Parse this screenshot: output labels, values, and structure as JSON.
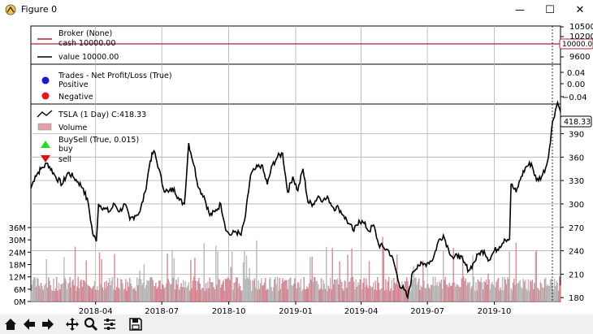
{
  "window": {
    "title": "Figure 0",
    "minimize_glyph": "—",
    "maximize_glyph": "☐",
    "close_glyph": "✕"
  },
  "toolbar": {
    "buttons": [
      "home-icon",
      "back-icon",
      "forward-icon",
      "pan-icon",
      "zoom-icon",
      "subplots-icon",
      "save-icon"
    ]
  },
  "colors": {
    "broker_line": "#b22234",
    "price_line": "#000000",
    "positive": "#1a1acc",
    "negative": "#e31a1c",
    "buy_marker": "#22dd22",
    "sell_marker": "#dd1111",
    "volume_up": "#c8c8c8",
    "volume_down": "#e3a1ab"
  },
  "chart_data": {
    "type": "line",
    "x_tick_labels": [
      "2018-04",
      "2018-07",
      "2018-10",
      "2019-01",
      "2019-04",
      "2019-07",
      "2019-10"
    ],
    "panels": {
      "broker": {
        "legend": [
          "Broker (None)",
          "cash 10000.00",
          "value 10000.00"
        ],
        "y_ticks": [
          10500,
          10200,
          10000,
          9600
        ],
        "value": 10000,
        "value_label": "10000.00"
      },
      "trades": {
        "legend": [
          "Trades - Net Profit/Loss (True)",
          "Positive",
          "Negative"
        ],
        "y_ticks": [
          "0.04",
          "0.00",
          "−0.04"
        ]
      },
      "price": {
        "legend": [
          "TSLA (1 Day) C:418.33",
          "Volume",
          "BuySell (True, 0.015)",
          "buy",
          "sell"
        ],
        "y_ticks": [
          180,
          210,
          240,
          270,
          300,
          330,
          360,
          390
        ],
        "ylim": [
          175,
          428
        ],
        "last_label": "418.33",
        "volume_ticks": [
          "0M",
          "6M",
          "12M",
          "18M",
          "24M",
          "30M",
          "36M"
        ],
        "volume_max_million": 36,
        "close_anchors": [
          [
            "2018-01-02",
            320
          ],
          [
            "2018-01-08",
            336
          ],
          [
            "2018-01-16",
            345
          ],
          [
            "2018-01-25",
            352
          ],
          [
            "2018-02-05",
            335
          ],
          [
            "2018-02-14",
            325
          ],
          [
            "2018-02-22",
            340
          ],
          [
            "2018-03-01",
            335
          ],
          [
            "2018-03-08",
            328
          ],
          [
            "2018-03-15",
            320
          ],
          [
            "2018-03-22",
            300
          ],
          [
            "2018-03-28",
            262
          ],
          [
            "2018-04-02",
            252
          ],
          [
            "2018-04-05",
            300
          ],
          [
            "2018-04-12",
            295
          ],
          [
            "2018-04-20",
            290
          ],
          [
            "2018-04-27",
            300
          ],
          [
            "2018-05-04",
            290
          ],
          [
            "2018-05-11",
            300
          ],
          [
            "2018-05-18",
            280
          ],
          [
            "2018-05-25",
            285
          ],
          [
            "2018-06-01",
            290
          ],
          [
            "2018-06-08",
            315
          ],
          [
            "2018-06-15",
            355
          ],
          [
            "2018-06-20",
            368
          ],
          [
            "2018-06-27",
            345
          ],
          [
            "2018-07-03",
            320
          ],
          [
            "2018-07-10",
            315
          ],
          [
            "2018-07-18",
            320
          ],
          [
            "2018-07-25",
            305
          ],
          [
            "2018-08-01",
            300
          ],
          [
            "2018-08-07",
            378
          ],
          [
            "2018-08-14",
            350
          ],
          [
            "2018-08-21",
            320
          ],
          [
            "2018-08-28",
            310
          ],
          [
            "2018-09-05",
            285
          ],
          [
            "2018-09-12",
            290
          ],
          [
            "2018-09-20",
            300
          ],
          [
            "2018-09-28",
            265
          ],
          [
            "2018-10-04",
            260
          ],
          [
            "2018-10-10",
            265
          ],
          [
            "2018-10-18",
            260
          ],
          [
            "2018-10-24",
            285
          ],
          [
            "2018-10-31",
            337
          ],
          [
            "2018-11-07",
            345
          ],
          [
            "2018-11-15",
            350
          ],
          [
            "2018-11-23",
            325
          ],
          [
            "2018-11-30",
            350
          ],
          [
            "2018-12-07",
            360
          ],
          [
            "2018-12-14",
            365
          ],
          [
            "2018-12-21",
            315
          ],
          [
            "2018-12-28",
            335
          ],
          [
            "2019-01-04",
            317
          ],
          [
            "2019-01-11",
            345
          ],
          [
            "2019-01-18",
            302
          ],
          [
            "2019-01-25",
            300
          ],
          [
            "2019-02-01",
            310
          ],
          [
            "2019-02-08",
            305
          ],
          [
            "2019-02-15",
            307
          ],
          [
            "2019-02-22",
            295
          ],
          [
            "2019-03-01",
            295
          ],
          [
            "2019-03-08",
            285
          ],
          [
            "2019-03-15",
            275
          ],
          [
            "2019-03-22",
            265
          ],
          [
            "2019-03-29",
            279
          ],
          [
            "2019-04-05",
            275
          ],
          [
            "2019-04-12",
            265
          ],
          [
            "2019-04-18",
            273
          ],
          [
            "2019-04-25",
            248
          ],
          [
            "2019-05-02",
            244
          ],
          [
            "2019-05-09",
            240
          ],
          [
            "2019-05-16",
            225
          ],
          [
            "2019-05-23",
            198
          ],
          [
            "2019-05-30",
            190
          ],
          [
            "2019-06-04",
            180
          ],
          [
            "2019-06-11",
            213
          ],
          [
            "2019-06-18",
            222
          ],
          [
            "2019-06-25",
            222
          ],
          [
            "2019-07-02",
            225
          ],
          [
            "2019-07-09",
            230
          ],
          [
            "2019-07-16",
            252
          ],
          [
            "2019-07-23",
            260
          ],
          [
            "2019-07-30",
            242
          ],
          [
            "2019-08-06",
            230
          ],
          [
            "2019-08-13",
            235
          ],
          [
            "2019-08-20",
            225
          ],
          [
            "2019-08-27",
            215
          ],
          [
            "2019-09-03",
            225
          ],
          [
            "2019-09-10",
            237
          ],
          [
            "2019-09-17",
            240
          ],
          [
            "2019-09-24",
            228
          ],
          [
            "2019-10-01",
            240
          ],
          [
            "2019-10-08",
            245
          ],
          [
            "2019-10-15",
            255
          ],
          [
            "2019-10-22",
            255
          ],
          [
            "2019-10-24",
            325
          ],
          [
            "2019-10-31",
            315
          ],
          [
            "2019-11-07",
            335
          ],
          [
            "2019-11-14",
            348
          ],
          [
            "2019-11-21",
            352
          ],
          [
            "2019-11-28",
            330
          ],
          [
            "2019-12-05",
            335
          ],
          [
            "2019-12-12",
            350
          ],
          [
            "2019-12-17",
            378
          ],
          [
            "2019-12-20",
            405
          ],
          [
            "2019-12-24",
            420
          ],
          [
            "2019-12-27",
            430
          ],
          [
            "2019-12-31",
            418
          ]
        ]
      }
    },
    "x_start": "2018-01-02",
    "x_end": "2019-12-31"
  }
}
